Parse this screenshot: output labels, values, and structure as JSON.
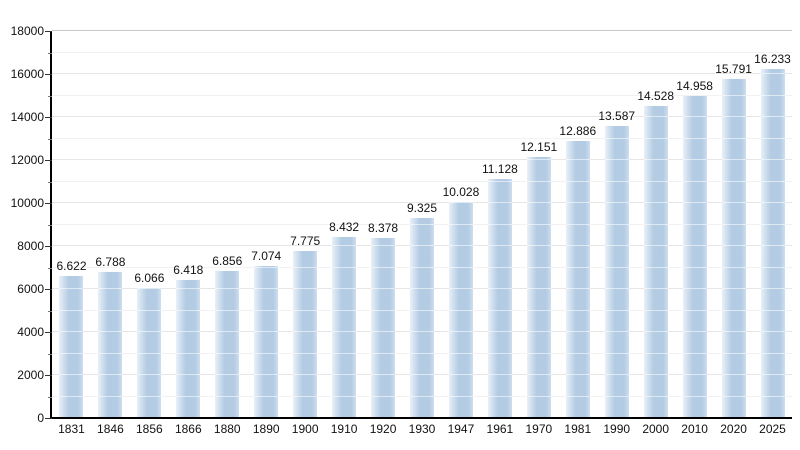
{
  "chart_data": {
    "type": "bar",
    "title": "",
    "xlabel": "",
    "ylabel": "",
    "categories": [
      "1831",
      "1846",
      "1856",
      "1866",
      "1880",
      "1890",
      "1900",
      "1910",
      "1920",
      "1930",
      "1947",
      "1961",
      "1970",
      "1981",
      "1990",
      "2000",
      "2010",
      "2020",
      "2025"
    ],
    "values": [
      6622,
      6788,
      6066,
      6418,
      6856,
      7074,
      7775,
      8432,
      8378,
      9325,
      10028,
      11128,
      12151,
      12886,
      13587,
      14528,
      14958,
      15791,
      16233
    ],
    "value_labels": [
      "6.622",
      "6.788",
      "6.066",
      "6.418",
      "6.856",
      "7.074",
      "7.775",
      "8.432",
      "8.378",
      "9.325",
      "10.028",
      "11.128",
      "12.151",
      "12.886",
      "13.587",
      "14.528",
      "14.958",
      "15.791",
      "16.233"
    ],
    "y_tick_labels": [
      "0",
      "2000",
      "4000",
      "6000",
      "8000",
      "10000",
      "12000",
      "14000",
      "16000",
      "18000"
    ],
    "ylim": [
      0,
      18000
    ],
    "y_major_step": 2000,
    "y_minor_step": 1000,
    "grid": "on",
    "legend": "none",
    "colors": {
      "bar_main": "#b3cce4",
      "bar_edge_light": "#e9f0f8",
      "bar_edge_right": "#cfdeee",
      "major_grid": "#c8c8c8",
      "minor_grid": "#e3e3e3",
      "axis": "#000000",
      "text": "#111111"
    }
  }
}
